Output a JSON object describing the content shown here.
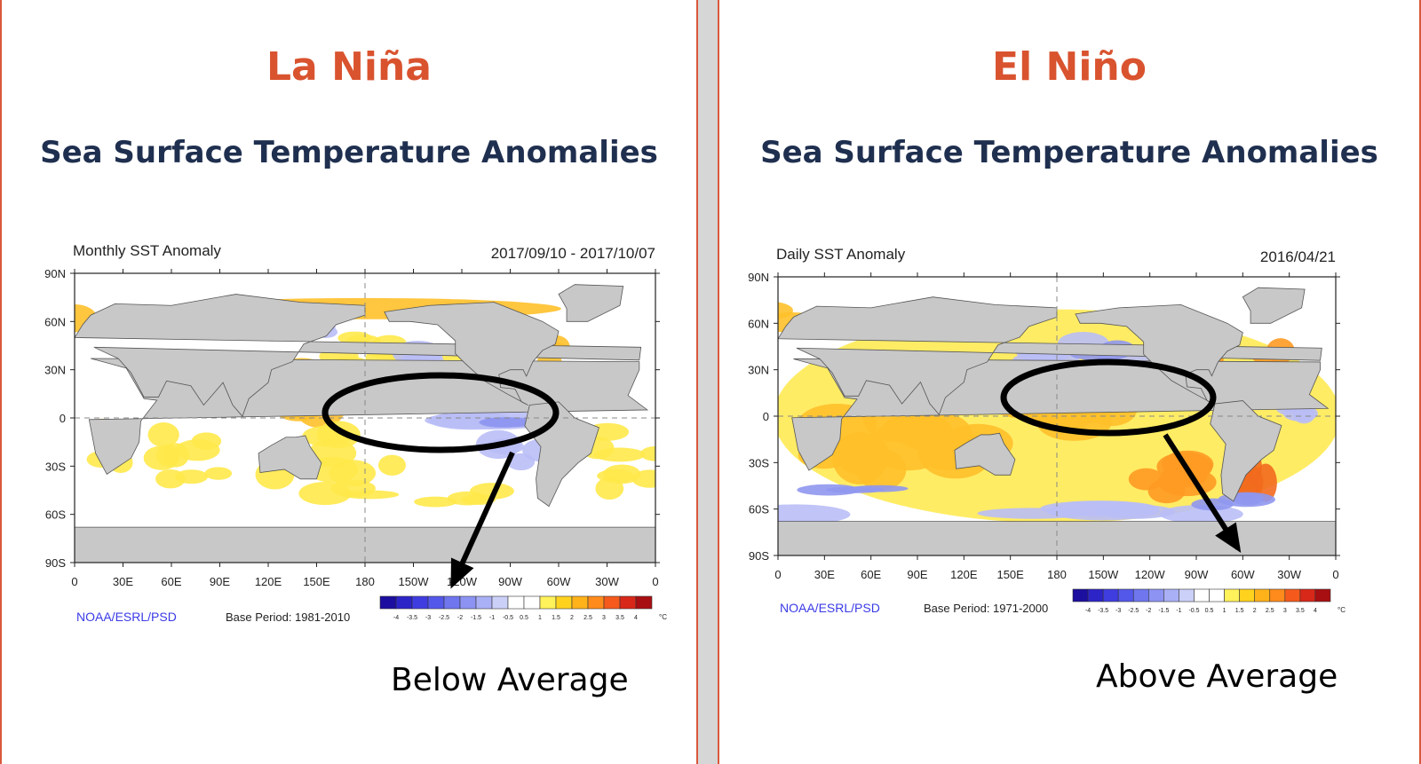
{
  "left": {
    "heading": "La Niña",
    "subheading": "Sea Surface Temperature Anomalies",
    "map_title": "Monthly SST Anomaly",
    "date_range": "2017/09/10 - 2017/10/07",
    "source": "NOAA/ESRL/PSD",
    "base_period": "Base Period: 1981-2010",
    "callout": "Below Average"
  },
  "right": {
    "heading": "El Niño",
    "subheading": "Sea Surface Temperature Anomalies",
    "map_title": "Daily SST Anomaly",
    "date_range": "2016/04/21",
    "source": "NOAA/ESRL/PSD",
    "base_period": "Base Period: 1971-2000",
    "callout": "Above Average"
  },
  "axes": {
    "lat_labels": [
      "90N",
      "60N",
      "30N",
      "0",
      "30S",
      "60S",
      "90S"
    ],
    "lon_labels": [
      "0",
      "30E",
      "60E",
      "90E",
      "120E",
      "150E",
      "180",
      "150W",
      "120W",
      "90W",
      "60W",
      "30W",
      "0"
    ]
  },
  "colorbar": {
    "ticks": [
      "-4",
      "-3.5",
      "-3",
      "-2.5",
      "-2",
      "-1.5",
      "-1",
      "-0.5",
      "0.5",
      "1",
      "1.5",
      "2",
      "2.5",
      "3",
      "3.5",
      "4"
    ],
    "unit": "°C",
    "colors": [
      "#1c0e9e",
      "#2d24c8",
      "#3f3de0",
      "#5458ea",
      "#6f76ee",
      "#8c93f2",
      "#aab0f5",
      "#cbd0f8",
      "#ffffff",
      "#ffffff",
      "#fff25a",
      "#ffd21e",
      "#ffb21a",
      "#ff8b1c",
      "#f55a1c",
      "#d8281a",
      "#a80f12"
    ]
  },
  "colors": {
    "heading": "#d9532f",
    "subheading": "#1f2f4f",
    "land": "#c8c8c8",
    "source_text": "#3a3ae6"
  }
}
